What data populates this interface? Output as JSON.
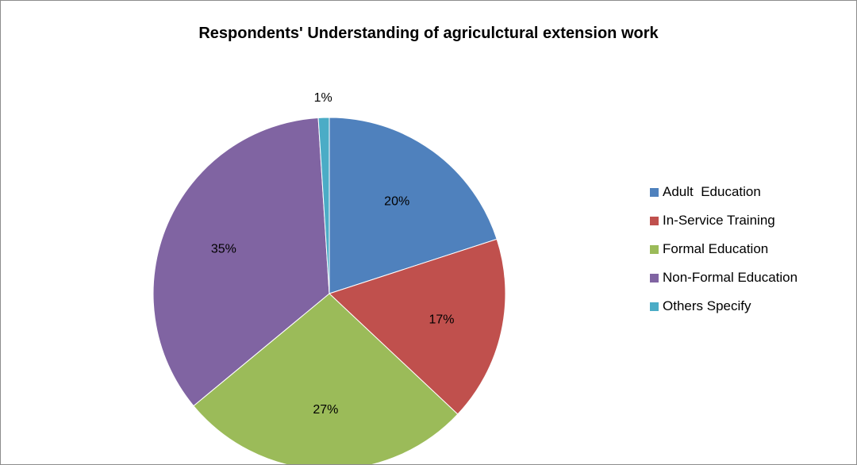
{
  "chart_data": {
    "type": "pie",
    "title": "Respondents' Understanding of agriculctural extension work",
    "categories": [
      "Adult  Education",
      "In-Service Training",
      "Formal Education",
      "Non-Formal Education",
      "Others Specify"
    ],
    "values": [
      20,
      17,
      27,
      35,
      1
    ],
    "labels": [
      "20%",
      "17%",
      "27%",
      "35%",
      "1%"
    ],
    "colors": [
      "#4f81bd",
      "#c0504d",
      "#9bbb59",
      "#8064a2",
      "#4bacc6"
    ],
    "legend_position": "right"
  }
}
